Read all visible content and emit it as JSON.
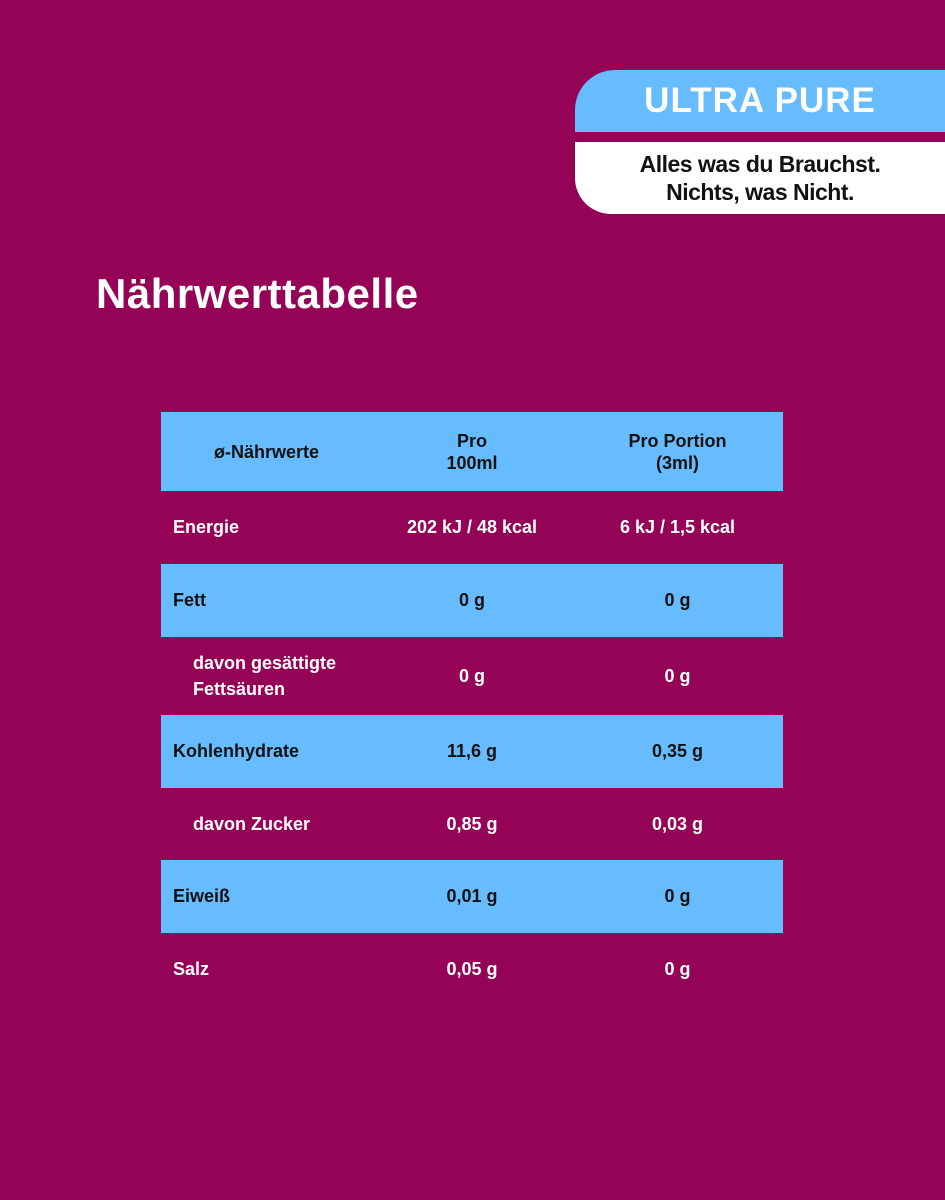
{
  "badge": {
    "title": "ULTRA PURE",
    "tagline_1": "Alles was du Brauchst.",
    "tagline_2": "Nichts, was Nicht."
  },
  "heading": "Nährwerttabelle",
  "colors": {
    "background": "#950357",
    "accent_blue": "#66bcff",
    "white": "#ffffff"
  },
  "table": {
    "headers": {
      "label": "ø-Nährwerte",
      "col1_line1": "Pro",
      "col1_line2": "100ml",
      "col2_line1": "Pro Portion",
      "col2_line2": "(3ml)"
    },
    "rows": [
      {
        "label": "Energie",
        "per100": "202 kJ / 48 kcal",
        "portion": "6 kJ / 1,5 kcal"
      },
      {
        "label": "Fett",
        "per100": "0 g",
        "portion": "0 g"
      },
      {
        "label_1": "davon gesättigte",
        "label_2": "Fettsäuren",
        "per100": "0 g",
        "portion": "0 g"
      },
      {
        "label": "Kohlenhydrate",
        "per100": "11,6 g",
        "portion": "0,35 g"
      },
      {
        "label": "davon Zucker",
        "per100": "0,85 g",
        "portion": "0,03 g"
      },
      {
        "label": "Eiweiß",
        "per100": "0,01 g",
        "portion": "0 g"
      },
      {
        "label": "Salz",
        "per100": "0,05 g",
        "portion": "0 g"
      }
    ]
  }
}
